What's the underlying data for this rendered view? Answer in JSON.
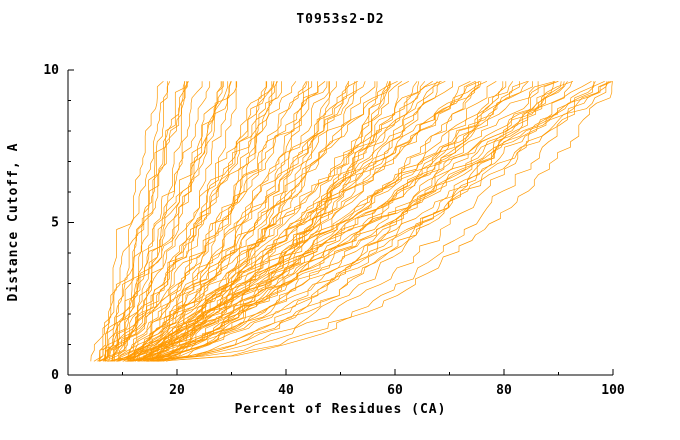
{
  "chart_data": {
    "type": "line",
    "title": "T0953s2-D2",
    "xlabel": "Percent of Residues (CA)",
    "ylabel": "Distance Cutoff, A",
    "xlim": [
      0,
      100
    ],
    "ylim": [
      0,
      10
    ],
    "xticks": [
      0,
      20,
      40,
      60,
      80,
      100
    ],
    "x_minor_step": 10,
    "yticks": [
      0,
      5,
      10
    ],
    "y_minor_step": 1,
    "series_color": "#ff9900",
    "axis_color": "#000000",
    "background": "#ffffff",
    "legend": "none",
    "grid": "off",
    "description": "GDT-style cumulative accuracy plot for target T0953s2-D2: ~95 overlapping orange model curves, each monotonically increasing; percent of CA residues (x) found under a distance cutoff in Angstroms (y). Curves begin near (5-17, 0.5) and climb to the top cutoff (~9.65 A) at x positions spread from ~18 to ~100.",
    "curve_family": {
      "n_curves": 95,
      "seed": 7,
      "y_start": 0.45,
      "y_end": 9.65,
      "y_step": 0.18,
      "x_start_min": 5,
      "x_start_max": 17,
      "x_end_min": 18,
      "x_end_max": 102,
      "shape_min": 0.45,
      "shape_max": 1.15,
      "jitter": 3,
      "envelope_best": [
        [
          5,
          0.5
        ],
        [
          9,
          2
        ],
        [
          12,
          5
        ],
        [
          15,
          8
        ],
        [
          18,
          9.6
        ]
      ],
      "envelope_worst": [
        [
          16,
          0.5
        ],
        [
          45,
          2
        ],
        [
          75,
          4
        ],
        [
          95,
          7
        ],
        [
          100,
          9.6
        ]
      ]
    }
  }
}
